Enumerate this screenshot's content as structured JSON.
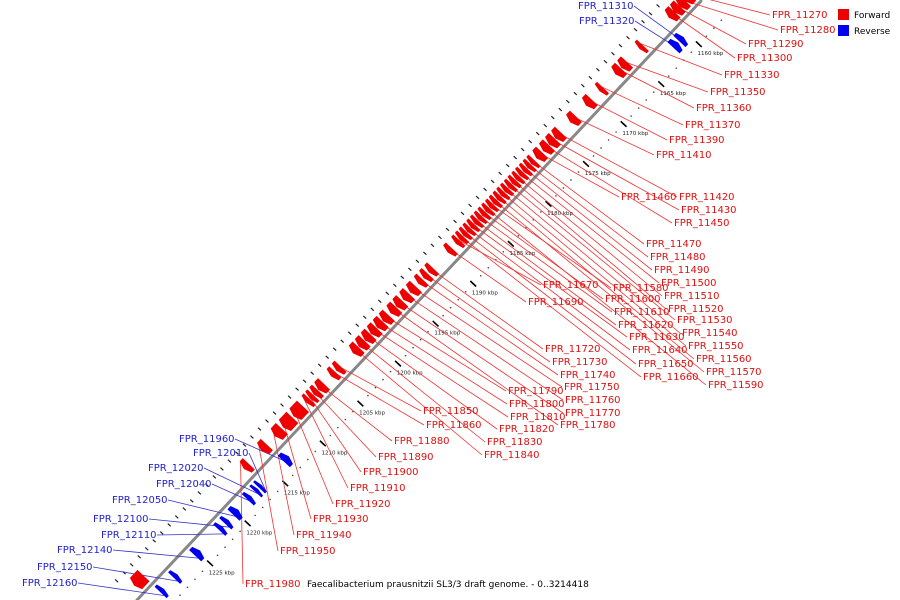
{
  "caption": "Faecalibacterium prausnitzii SL3/3 draft genome. - 0..3214418",
  "legend": {
    "position": "top-right",
    "items": [
      {
        "label": "Forward",
        "color": "#ee0000"
      },
      {
        "label": "Reverse",
        "color": "#0000ee"
      }
    ]
  },
  "colors": {
    "forward": "#ee0000",
    "reverse": "#0000ee",
    "backbone": "#888888"
  },
  "axis": {
    "unit": "kbp",
    "visible_range_kbp": [
      1157,
      1232
    ],
    "ticks": [
      {
        "kbp": 1160,
        "label": "1160 kbp"
      },
      {
        "kbp": 1165,
        "label": "1165 kbp"
      },
      {
        "kbp": 1170,
        "label": "1170 kbp"
      },
      {
        "kbp": 1175,
        "label": "1175 kbp"
      },
      {
        "kbp": 1180,
        "label": "1180 kbp"
      },
      {
        "kbp": 1185,
        "label": "1185 kbp"
      },
      {
        "kbp": 1190,
        "label": "1190 kbp"
      },
      {
        "kbp": 1195,
        "label": "1195 kbp"
      },
      {
        "kbp": 1200,
        "label": "1200 kbp"
      },
      {
        "kbp": 1205,
        "label": "1205 kbp"
      },
      {
        "kbp": 1210,
        "label": "1210 kbp"
      },
      {
        "kbp": 1215,
        "label": "1215 kbp"
      },
      {
        "kbp": 1220,
        "label": "1220 kbp"
      },
      {
        "kbp": 1225,
        "label": "1225 kbp"
      },
      {
        "kbp": 1230,
        "label": "1230 kbp"
      }
    ]
  },
  "forward_genes": [
    {
      "name": "FPR_11270",
      "start": 1157.3,
      "end": 1158.0
    },
    {
      "name": "FPR_11280",
      "start": 1158.0,
      "end": 1158.7
    },
    {
      "name": "FPR_11290",
      "start": 1158.7,
      "end": 1159.4
    },
    {
      "name": "FPR_11300",
      "start": 1159.4,
      "end": 1160.1
    },
    {
      "name": "FPR_11330",
      "start": 1163.6,
      "end": 1164.0
    },
    {
      "name": "FPR_11350",
      "start": 1165.7,
      "end": 1166.4
    },
    {
      "name": "FPR_11360",
      "start": 1166.5,
      "end": 1167.2
    },
    {
      "name": "FPR_11370",
      "start": 1168.9,
      "end": 1169.3
    },
    {
      "name": "FPR_11390",
      "start": 1170.4,
      "end": 1171.1
    },
    {
      "name": "FPR_11410",
      "start": 1172.5,
      "end": 1173.2
    },
    {
      "name": "FPR_11420",
      "start": 1174.5,
      "end": 1175.2
    },
    {
      "name": "FPR_11430",
      "start": 1175.3,
      "end": 1176.0
    },
    {
      "name": "FPR_11450",
      "start": 1176.1,
      "end": 1176.8
    },
    {
      "name": "FPR_11460",
      "start": 1177.0,
      "end": 1177.7
    },
    {
      "name": "FPR_11470",
      "start": 1178.0,
      "end": 1178.4
    },
    {
      "name": "FPR_11480",
      "start": 1178.5,
      "end": 1178.9
    },
    {
      "name": "FPR_11490",
      "start": 1179.0,
      "end": 1179.4
    },
    {
      "name": "FPR_11500",
      "start": 1179.5,
      "end": 1179.9
    },
    {
      "name": "FPR_11510",
      "start": 1180.0,
      "end": 1180.4
    },
    {
      "name": "FPR_11520",
      "start": 1180.5,
      "end": 1180.9
    },
    {
      "name": "FPR_11530",
      "start": 1181.0,
      "end": 1181.4
    },
    {
      "name": "FPR_11540",
      "start": 1181.5,
      "end": 1181.9
    },
    {
      "name": "FPR_11550",
      "start": 1182.0,
      "end": 1182.4
    },
    {
      "name": "FPR_11560",
      "start": 1182.5,
      "end": 1182.9
    },
    {
      "name": "FPR_11570",
      "start": 1183.0,
      "end": 1183.4
    },
    {
      "name": "FPR_11580",
      "start": 1183.5,
      "end": 1183.9
    },
    {
      "name": "FPR_11590",
      "start": 1184.0,
      "end": 1184.4
    },
    {
      "name": "FPR_11600",
      "start": 1184.5,
      "end": 1184.9
    },
    {
      "name": "FPR_11610",
      "start": 1185.0,
      "end": 1185.4
    },
    {
      "name": "FPR_11620",
      "start": 1185.5,
      "end": 1185.9
    },
    {
      "name": "FPR_11630",
      "start": 1186.0,
      "end": 1186.4
    },
    {
      "name": "FPR_11640",
      "start": 1186.5,
      "end": 1186.9
    },
    {
      "name": "FPR_11650",
      "start": 1187.0,
      "end": 1187.4
    },
    {
      "name": "FPR_11660",
      "start": 1187.5,
      "end": 1187.9
    },
    {
      "name": "FPR_11670",
      "start": 1188.0,
      "end": 1188.4
    },
    {
      "name": "FPR_11690",
      "start": 1189.0,
      "end": 1189.5
    },
    {
      "name": "FPR_11720",
      "start": 1191.5,
      "end": 1192.0
    },
    {
      "name": "FPR_11730",
      "start": 1192.2,
      "end": 1192.7
    },
    {
      "name": "FPR_11740",
      "start": 1192.9,
      "end": 1193.4
    },
    {
      "name": "FPR_11750",
      "start": 1193.8,
      "end": 1194.5
    },
    {
      "name": "FPR_11760",
      "start": 1194.7,
      "end": 1195.4
    },
    {
      "name": "FPR_11770",
      "start": 1195.6,
      "end": 1196.3
    },
    {
      "name": "FPR_11780",
      "start": 1196.4,
      "end": 1197.1
    },
    {
      "name": "FPR_11790",
      "start": 1197.4,
      "end": 1198.1
    },
    {
      "name": "FPR_11800",
      "start": 1198.2,
      "end": 1198.9
    },
    {
      "name": "FPR_11810",
      "start": 1199.0,
      "end": 1199.7
    },
    {
      "name": "FPR_11820",
      "start": 1199.8,
      "end": 1200.5
    },
    {
      "name": "FPR_11830",
      "start": 1200.6,
      "end": 1201.3
    },
    {
      "name": "FPR_11840",
      "start": 1201.4,
      "end": 1202.1
    },
    {
      "name": "FPR_11850",
      "start": 1203.8,
      "end": 1204.3
    },
    {
      "name": "FPR_11860",
      "start": 1204.5,
      "end": 1205.0
    },
    {
      "name": "FPR_11880",
      "start": 1206.0,
      "end": 1206.7
    },
    {
      "name": "FPR_11890",
      "start": 1206.8,
      "end": 1207.3
    },
    {
      "name": "FPR_11900",
      "start": 1207.4,
      "end": 1207.8
    },
    {
      "name": "FPR_11910",
      "start": 1207.9,
      "end": 1208.3
    },
    {
      "name": "FPR_11920",
      "start": 1208.8,
      "end": 1210.0
    },
    {
      "name": "FPR_11930",
      "start": 1210.2,
      "end": 1211.4
    },
    {
      "name": "FPR_11940",
      "start": 1211.6,
      "end": 1212.5
    },
    {
      "name": "FPR_11950",
      "start": 1213.6,
      "end": 1214.3
    },
    {
      "name": "FPR_11980",
      "start": 1216.0,
      "end": 1216.6
    },
    {
      "name": "FPR_12170",
      "start": 1230.0,
      "end": 1231.2,
      "label": ""
    }
  ],
  "reverse_genes": [
    {
      "name": "FPR_11310",
      "start": 1160.5,
      "end": 1161.0
    },
    {
      "name": "FPR_11320",
      "start": 1161.2,
      "end": 1161.8
    },
    {
      "name": "FPR_11960",
      "start": 1213.0,
      "end": 1213.6
    },
    {
      "name": "FPR_12010",
      "start": 1216.6,
      "end": 1216.9
    },
    {
      "name": "FPR_12020",
      "start": 1217.1,
      "end": 1217.4
    },
    {
      "name": "FPR_12040",
      "start": 1218.0,
      "end": 1218.4
    },
    {
      "name": "FPR_12050",
      "start": 1219.7,
      "end": 1220.3
    },
    {
      "name": "FPR_12100",
      "start": 1221.0,
      "end": 1221.4
    },
    {
      "name": "FPR_12110",
      "start": 1221.8,
      "end": 1222.2
    },
    {
      "name": "FPR_12140",
      "start": 1224.8,
      "end": 1225.4
    },
    {
      "name": "FPR_12150",
      "start": 1227.8,
      "end": 1228.2
    },
    {
      "name": "FPR_12160",
      "start": 1229.6,
      "end": 1230.0
    }
  ],
  "forward_labels": [
    {
      "name": "FPR_11270",
      "text": "FPR_11270"
    },
    {
      "name": "FPR_11280",
      "text": "FPR_11280"
    },
    {
      "name": "FPR_11290",
      "text": "FPR_11290"
    },
    {
      "name": "FPR_11300",
      "text": "FPR_11300"
    },
    {
      "name": "FPR_11330",
      "text": "FPR_11330"
    },
    {
      "name": "FPR_11350",
      "text": "FPR_11350"
    },
    {
      "name": "FPR_11360",
      "text": "FPR_11360"
    },
    {
      "name": "FPR_11370",
      "text": "FPR_11370"
    },
    {
      "name": "FPR_11390",
      "text": "FPR_11390"
    },
    {
      "name": "FPR_11410",
      "text": "FPR_11410"
    },
    {
      "name": "FPR_11460",
      "text": "FPR_11460"
    },
    {
      "name": "FPR_11420",
      "text": "FPR_11420"
    },
    {
      "name": "FPR_11430",
      "text": "FPR_11430"
    },
    {
      "name": "FPR_11450",
      "text": "FPR_11450"
    },
    {
      "name": "FPR_11470",
      "text": "FPR_11470"
    },
    {
      "name": "FPR_11480",
      "text": "FPR_11480"
    },
    {
      "name": "FPR_11490",
      "text": "FPR_11490"
    },
    {
      "name": "FPR_11500",
      "text": "FPR_11500"
    },
    {
      "name": "FPR_11670",
      "text": "FPR_11670"
    },
    {
      "name": "FPR_11580",
      "text": "FPR_11580"
    },
    {
      "name": "FPR_11510",
      "text": "FPR_11510"
    },
    {
      "name": "FPR_11690",
      "text": "FPR_11690"
    },
    {
      "name": "FPR_11600",
      "text": "FPR_11600"
    },
    {
      "name": "FPR_11520",
      "text": "FPR_11520"
    },
    {
      "name": "FPR_11610",
      "text": "FPR_11610"
    },
    {
      "name": "FPR_11530",
      "text": "FPR_11530"
    },
    {
      "name": "FPR_11620",
      "text": "FPR_11620"
    },
    {
      "name": "FPR_11540",
      "text": "FPR_11540"
    },
    {
      "name": "FPR_11630",
      "text": "FPR_11630"
    },
    {
      "name": "FPR_11550",
      "text": "FPR_11550"
    },
    {
      "name": "FPR_11720",
      "text": "FPR_11720"
    },
    {
      "name": "FPR_11640",
      "text": "FPR_11640"
    },
    {
      "name": "FPR_11560",
      "text": "FPR_11560"
    },
    {
      "name": "FPR_11730",
      "text": "FPR_11730"
    },
    {
      "name": "FPR_11650",
      "text": "FPR_11650"
    },
    {
      "name": "FPR_11570",
      "text": "FPR_11570"
    },
    {
      "name": "FPR_11740",
      "text": "FPR_11740"
    },
    {
      "name": "FPR_11660",
      "text": "FPR_11660"
    },
    {
      "name": "FPR_11590",
      "text": "FPR_11590"
    },
    {
      "name": "FPR_11790",
      "text": "FPR_11790"
    },
    {
      "name": "FPR_11750",
      "text": "FPR_11750"
    },
    {
      "name": "FPR_11800",
      "text": "FPR_11800"
    },
    {
      "name": "FPR_11760",
      "text": "FPR_11760"
    },
    {
      "name": "FPR_11850",
      "text": "FPR_11850"
    },
    {
      "name": "FPR_11810",
      "text": "FPR_11810"
    },
    {
      "name": "FPR_11770",
      "text": "FPR_11770"
    },
    {
      "name": "FPR_11860",
      "text": "FPR_11860"
    },
    {
      "name": "FPR_11820",
      "text": "FPR_11820"
    },
    {
      "name": "FPR_11780",
      "text": "FPR_11780"
    },
    {
      "name": "FPR_11880",
      "text": "FPR_11880"
    },
    {
      "name": "FPR_11830",
      "text": "FPR_11830"
    },
    {
      "name": "FPR_11840",
      "text": "FPR_11840"
    },
    {
      "name": "FPR_11890",
      "text": "FPR_11890"
    },
    {
      "name": "FPR_11900",
      "text": "FPR_11900"
    },
    {
      "name": "FPR_11910",
      "text": "FPR_11910"
    },
    {
      "name": "FPR_11920",
      "text": "FPR_11920"
    },
    {
      "name": "FPR_11930",
      "text": "FPR_11930"
    },
    {
      "name": "FPR_11940",
      "text": "FPR_11940"
    },
    {
      "name": "FPR_11950",
      "text": "FPR_11950"
    },
    {
      "name": "FPR_11980",
      "text": "FPR_11980"
    }
  ],
  "reverse_labels": [
    {
      "name": "FPR_11310",
      "text": "FPR_11310"
    },
    {
      "name": "FPR_11320",
      "text": "FPR_11320"
    },
    {
      "name": "FPR_11960",
      "text": "FPR_11960"
    },
    {
      "name": "FPR_12010",
      "text": "FPR_12010"
    },
    {
      "name": "FPR_12020",
      "text": "FPR_12020"
    },
    {
      "name": "FPR_12040",
      "text": "FPR_12040"
    },
    {
      "name": "FPR_12050",
      "text": "FPR_12050"
    },
    {
      "name": "FPR_12100",
      "text": "FPR_12100"
    },
    {
      "name": "FPR_12110",
      "text": "FPR_12110"
    },
    {
      "name": "FPR_12140",
      "text": "FPR_12140"
    },
    {
      "name": "FPR_12150",
      "text": "FPR_12150"
    },
    {
      "name": "FPR_12160",
      "text": "FPR_12160"
    }
  ]
}
